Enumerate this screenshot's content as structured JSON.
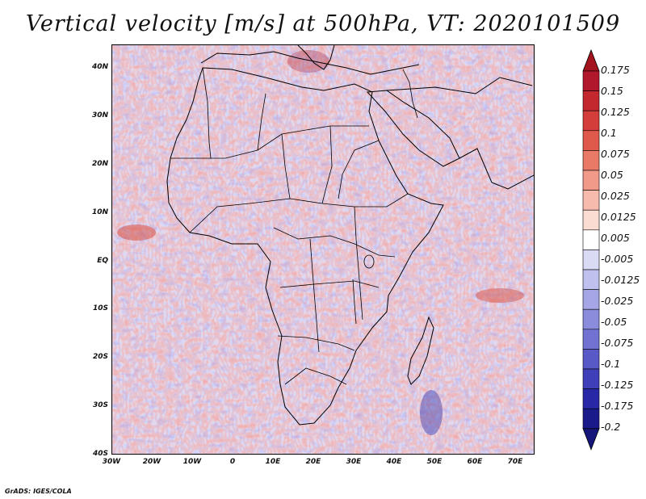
{
  "title": "Vertical velocity [m/s] at 500hPa, VT: 2020101509",
  "credit": "GrADS: IGES/COLA",
  "map": {
    "variable": "Vertical velocity",
    "units": "m/s",
    "level": "500hPa",
    "valid_time": "2020101509",
    "region": "Africa",
    "lon_range": [
      -30,
      75
    ],
    "lat_range": [
      -40,
      45
    ],
    "lat_ticks": [
      {
        "value": 40,
        "label": "40N"
      },
      {
        "value": 30,
        "label": "30N"
      },
      {
        "value": 20,
        "label": "20N"
      },
      {
        "value": 10,
        "label": "10N"
      },
      {
        "value": 0,
        "label": "EQ"
      },
      {
        "value": -10,
        "label": "10S"
      },
      {
        "value": -20,
        "label": "20S"
      },
      {
        "value": -30,
        "label": "30S"
      },
      {
        "value": -40,
        "label": "40S"
      }
    ],
    "lon_ticks": [
      {
        "value": -30,
        "label": "30W"
      },
      {
        "value": -20,
        "label": "20W"
      },
      {
        "value": -10,
        "label": "10W"
      },
      {
        "value": 0,
        "label": "0"
      },
      {
        "value": 10,
        "label": "10E"
      },
      {
        "value": 20,
        "label": "20E"
      },
      {
        "value": 30,
        "label": "30E"
      },
      {
        "value": 40,
        "label": "40E"
      },
      {
        "value": 50,
        "label": "50E"
      },
      {
        "value": 60,
        "label": "60E"
      },
      {
        "value": 70,
        "label": "70E"
      }
    ]
  },
  "colorbar": {
    "levels": [
      {
        "label": "0.175",
        "color": "#b2182b"
      },
      {
        "label": "0.15",
        "color": "#c4282f"
      },
      {
        "label": "0.125",
        "color": "#d33d3a"
      },
      {
        "label": "0.1",
        "color": "#e05a4c"
      },
      {
        "label": "0.075",
        "color": "#ea7a68"
      },
      {
        "label": "0.05",
        "color": "#f29a89"
      },
      {
        "label": "0.025",
        "color": "#f7bbae"
      },
      {
        "label": "0.0125",
        "color": "#fbdcd3"
      },
      {
        "label": "0.005",
        "color": "#ffffff"
      },
      {
        "label": "-0.005",
        "color": "#dadaf4"
      },
      {
        "label": "-0.0125",
        "color": "#c0c0ee"
      },
      {
        "label": "-0.025",
        "color": "#a6a6e6"
      },
      {
        "label": "-0.05",
        "color": "#8c8cdd"
      },
      {
        "label": "-0.075",
        "color": "#7272d3"
      },
      {
        "label": "-0.1",
        "color": "#5858c7"
      },
      {
        "label": "-0.125",
        "color": "#3f3fb9"
      },
      {
        "label": "-0.175",
        "color": "#2828a6"
      },
      {
        "label": "-0.2",
        "color": "#1a1a8a"
      }
    ],
    "top_arrow_color": "#a3141f",
    "bottom_arrow_color": "#15157a"
  }
}
